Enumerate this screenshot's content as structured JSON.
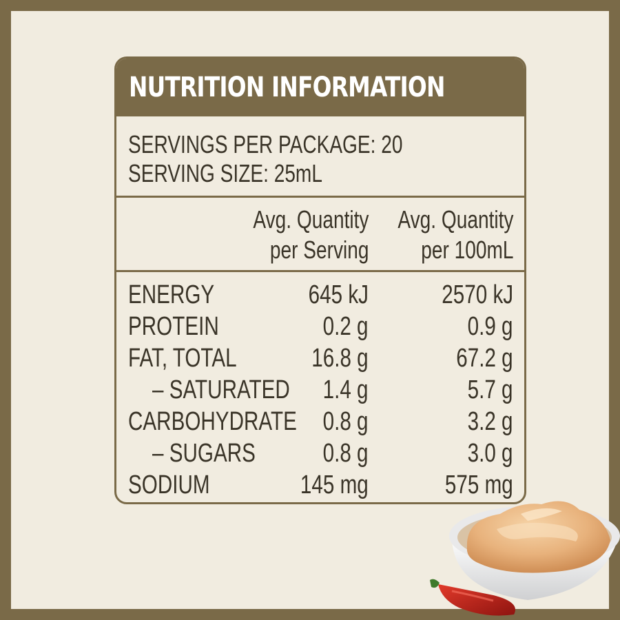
{
  "title": "NUTRITION INFORMATION",
  "servings_per_package": "SERVINGS PER PACKAGE: 20",
  "serving_size": "SERVING SIZE: 25mL",
  "columns": {
    "per_serving_line1": "Avg. Quantity",
    "per_serving_line2": "per Serving",
    "per_100_line1": "Avg. Quantity",
    "per_100_line2": "per 100mL"
  },
  "rows": [
    {
      "label": "ENERGY",
      "per_serving": "645 kJ",
      "per_100": "2570 kJ"
    },
    {
      "label": "PROTEIN",
      "per_serving": "0.2 g",
      "per_100": "0.9 g"
    },
    {
      "label": "FAT, TOTAL",
      "per_serving": "16.8 g",
      "per_100": "67.2 g"
    },
    {
      "label": "– SATURATED",
      "per_serving": "1.4 g",
      "per_100": "5.7 g"
    },
    {
      "label": "CARBOHYDRATE",
      "per_serving": "0.8 g",
      "per_100": "3.2 g"
    },
    {
      "label": "– SUGARS",
      "per_serving": "0.8 g",
      "per_100": "3.0 g"
    },
    {
      "label": "SODIUM",
      "per_serving": "145 mg",
      "per_100": "575 mg"
    }
  ],
  "colors": {
    "brand": "#7a6a48",
    "background": "#f1ece0",
    "text": "#3a3428"
  },
  "decoration": {
    "image": "sauce-bowl-with-chili"
  }
}
